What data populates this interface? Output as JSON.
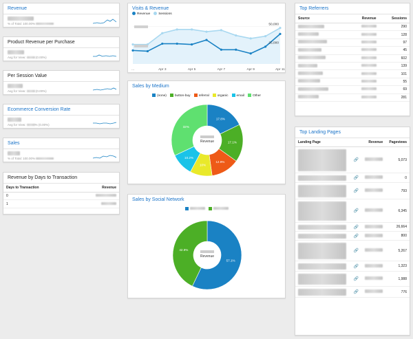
{
  "colors": {
    "title": "#1a73c8",
    "revenue": "#1a82c4",
    "sessions": "#a8d8f0",
    "none": "#1a82c4",
    "button_buy": "#4caf26",
    "referral": "#ee5a17",
    "organic": "#e9e92a",
    "email": "#1ac3e8",
    "other": "#5fe070"
  },
  "left": {
    "revenue": {
      "title": "Revenue",
      "sub": "% of Total: 100.00%"
    },
    "prpp": {
      "title": "Product Revenue per Purchase",
      "sub": "Avg for View:",
      "pct": "(0.00%)"
    },
    "psv": {
      "title": "Per Session Value",
      "sub": "Avg for View:",
      "pct": "(0.00%)"
    },
    "ecr": {
      "title": "Ecommerce Conversion Rate",
      "sub": "Avg for View:",
      "pct": "% (0.00%)"
    },
    "sales": {
      "title": "Sales",
      "sub": "% of Total: 100.00%"
    },
    "rbd": {
      "title": "Revenue by Days to Transaction",
      "col1": "Days to Transaction",
      "col2": "Revenue",
      "rows": [
        {
          "day": "0"
        },
        {
          "day": "1"
        }
      ]
    }
  },
  "visits": {
    "title": "Visits & Revenue",
    "legend_revenue": "Revenue",
    "legend_sessions": "Sessions",
    "y_top": "50,000",
    "y_mid": "25,000",
    "x_labels": [
      "...",
      "Apr 3",
      "Apr 5",
      "Apr 7",
      "Apr 9",
      "Apr 11"
    ]
  },
  "chart_data": [
    {
      "type": "line",
      "title": "Visits & Revenue",
      "x": [
        "Apr 1",
        "Apr 2",
        "Apr 3",
        "Apr 4",
        "Apr 5",
        "Apr 6",
        "Apr 7",
        "Apr 8",
        "Apr 9",
        "Apr 10",
        "Apr 11"
      ],
      "series": [
        {
          "name": "Revenue",
          "values": [
            18000,
            17000,
            27000,
            27000,
            26000,
            32000,
            19000,
            19000,
            14000,
            23000,
            40000
          ]
        },
        {
          "name": "Sessions",
          "values": [
            26000,
            26000,
            41000,
            46000,
            46000,
            43000,
            45000,
            38000,
            34000,
            37000,
            48000
          ]
        }
      ]
    },
    {
      "type": "pie",
      "title": "Sales by Medium",
      "categories": [
        "(none)",
        "button-buy",
        "referral",
        "organic",
        "email",
        "Other"
      ],
      "values": [
        17.8,
        17.1,
        12.9,
        10.0,
        10.2,
        32.0
      ],
      "labels": [
        "17.8%",
        "17.1%",
        "12.9%",
        "10%",
        "10.2%",
        "32%"
      ]
    },
    {
      "type": "pie",
      "title": "Sales by Social Network",
      "values": [
        57.1,
        42.9
      ],
      "labels": [
        "57.1%",
        "42.9%"
      ]
    }
  ],
  "medium": {
    "title": "Sales by Medium",
    "center": "Revenue",
    "legend": [
      "(none)",
      "button-buy",
      "referral",
      "organic",
      "email",
      "Other"
    ]
  },
  "social": {
    "title": "Sales by Social Network",
    "center": "Revenue"
  },
  "referrers": {
    "title": "Top Referrers",
    "col_source": "Source",
    "col_revenue": "Revenue",
    "col_sessions": "Sessions",
    "rows": [
      {
        "sessions": "290"
      },
      {
        "sessions": "128"
      },
      {
        "sessions": "97"
      },
      {
        "sessions": "45"
      },
      {
        "sessions": "602"
      },
      {
        "sessions": "139"
      },
      {
        "sessions": "101"
      },
      {
        "sessions": "55"
      },
      {
        "sessions": "69"
      },
      {
        "sessions": "281"
      }
    ]
  },
  "landing": {
    "title": "Top Landing Pages",
    "col_page": "Landing Page",
    "col_revenue": "Revenue",
    "col_views": "Pageviews",
    "rows": [
      {
        "views": "5,073"
      },
      {
        "views": "0"
      },
      {
        "views": "793"
      },
      {
        "views": "6,345"
      },
      {
        "views": "26,664"
      },
      {
        "views": "800"
      },
      {
        "views": "5,267"
      },
      {
        "views": "1,323"
      },
      {
        "views": "1,988"
      },
      {
        "views": "776"
      }
    ]
  }
}
